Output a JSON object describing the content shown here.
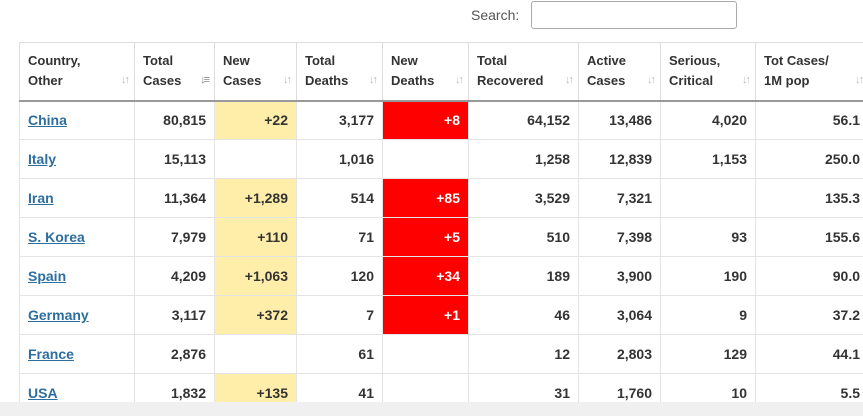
{
  "search": {
    "label": "Search:",
    "value": ""
  },
  "columns": [
    {
      "line1": "Country,",
      "line2": "Other",
      "sort": "both"
    },
    {
      "line1": "Total",
      "line2": "Cases",
      "sort": "desc"
    },
    {
      "line1": "New",
      "line2": "Cases",
      "sort": "both"
    },
    {
      "line1": "Total",
      "line2": "Deaths",
      "sort": "both"
    },
    {
      "line1": "New",
      "line2": "Deaths",
      "sort": "both"
    },
    {
      "line1": "Total",
      "line2": "Recovered",
      "sort": "both"
    },
    {
      "line1": "Active",
      "line2": "Cases",
      "sort": "both"
    },
    {
      "line1": "Serious,",
      "line2": "Critical",
      "sort": "both"
    },
    {
      "line1": "Tot Cases/",
      "line2": "1M pop",
      "sort": "both"
    }
  ],
  "rows": [
    {
      "country": "China",
      "total_cases": "80,815",
      "new_cases": "+22",
      "total_deaths": "3,177",
      "new_deaths": "+8",
      "total_recovered": "64,152",
      "active_cases": "13,486",
      "serious_critical": "4,020",
      "cases_per_1m": "56.1"
    },
    {
      "country": "Italy",
      "total_cases": "15,113",
      "new_cases": "",
      "total_deaths": "1,016",
      "new_deaths": "",
      "total_recovered": "1,258",
      "active_cases": "12,839",
      "serious_critical": "1,153",
      "cases_per_1m": "250.0"
    },
    {
      "country": "Iran",
      "total_cases": "11,364",
      "new_cases": "+1,289",
      "total_deaths": "514",
      "new_deaths": "+85",
      "total_recovered": "3,529",
      "active_cases": "7,321",
      "serious_critical": "",
      "cases_per_1m": "135.3"
    },
    {
      "country": "S. Korea",
      "total_cases": "7,979",
      "new_cases": "+110",
      "total_deaths": "71",
      "new_deaths": "+5",
      "total_recovered": "510",
      "active_cases": "7,398",
      "serious_critical": "93",
      "cases_per_1m": "155.6"
    },
    {
      "country": "Spain",
      "total_cases": "4,209",
      "new_cases": "+1,063",
      "total_deaths": "120",
      "new_deaths": "+34",
      "total_recovered": "189",
      "active_cases": "3,900",
      "serious_critical": "190",
      "cases_per_1m": "90.0"
    },
    {
      "country": "Germany",
      "total_cases": "3,117",
      "new_cases": "+372",
      "total_deaths": "7",
      "new_deaths": "+1",
      "total_recovered": "46",
      "active_cases": "3,064",
      "serious_critical": "9",
      "cases_per_1m": "37.2"
    },
    {
      "country": "France",
      "total_cases": "2,876",
      "new_cases": "",
      "total_deaths": "61",
      "new_deaths": "",
      "total_recovered": "12",
      "active_cases": "2,803",
      "serious_critical": "129",
      "cases_per_1m": "44.1"
    },
    {
      "country": "USA",
      "total_cases": "1,832",
      "new_cases": "+135",
      "total_deaths": "41",
      "new_deaths": "",
      "total_recovered": "31",
      "active_cases": "1,760",
      "serious_critical": "10",
      "cases_per_1m": "5.5"
    }
  ],
  "colors": {
    "new_cases_highlight": "#ffeeaa",
    "new_deaths_highlight": "#ff0000",
    "link": "#2e6e9e"
  }
}
